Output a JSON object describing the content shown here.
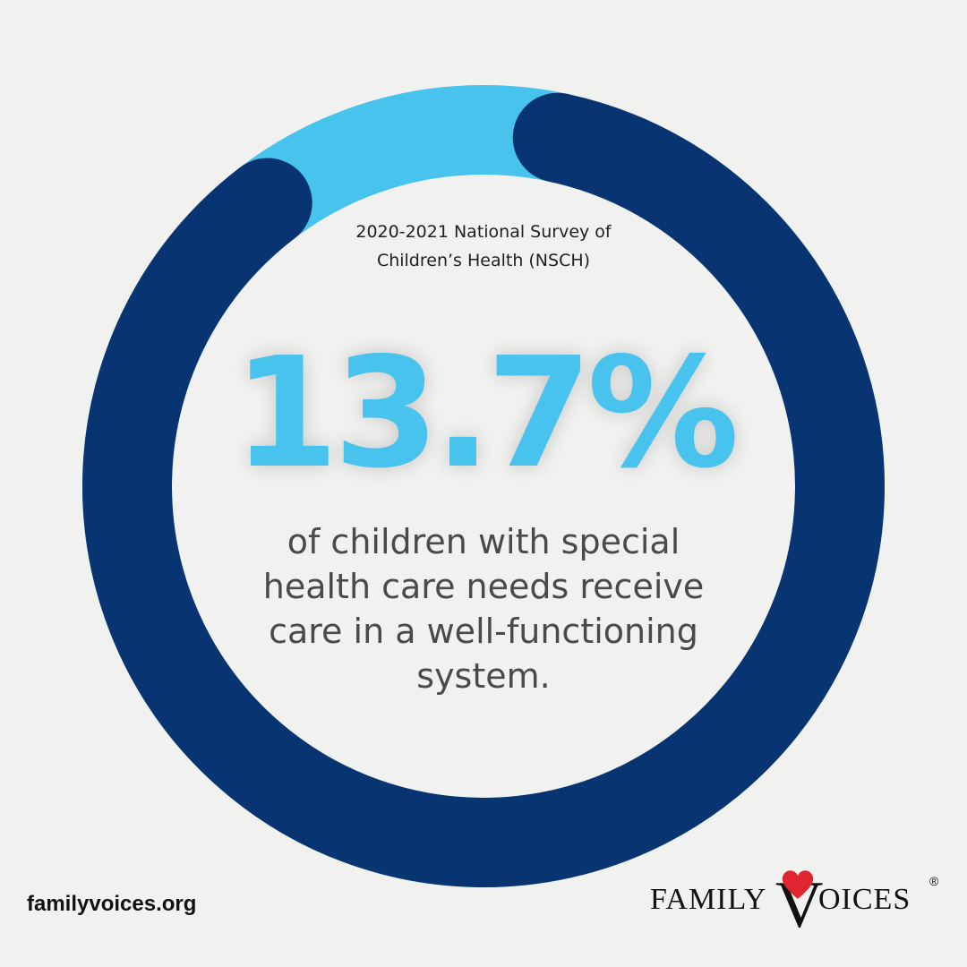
{
  "source_line_1": "2020-2021 National Survey of",
  "source_line_2": "Children’s Health (NSCH)",
  "stat_value": "13.7%",
  "caption_lines": [
    "of children with special",
    "health care needs receive",
    "care in a well-functioning",
    "system."
  ],
  "footer_url": "familyvoices.org",
  "logo": {
    "word_1": "FAMILY",
    "letter_v": "V",
    "word_2_rest": "OICES",
    "registered": "®"
  },
  "colors": {
    "background": "#f1f1ef",
    "highlight_segment": "#48c3ee",
    "remainder_segment": "#093472",
    "heart": "#e0252f"
  },
  "chart_data": {
    "type": "pie",
    "style": "donut",
    "values": [
      13.7,
      86.3
    ],
    "unit": "%",
    "segment_colors": [
      "#48c3ee",
      "#093472"
    ],
    "title": "",
    "legend": "none"
  }
}
